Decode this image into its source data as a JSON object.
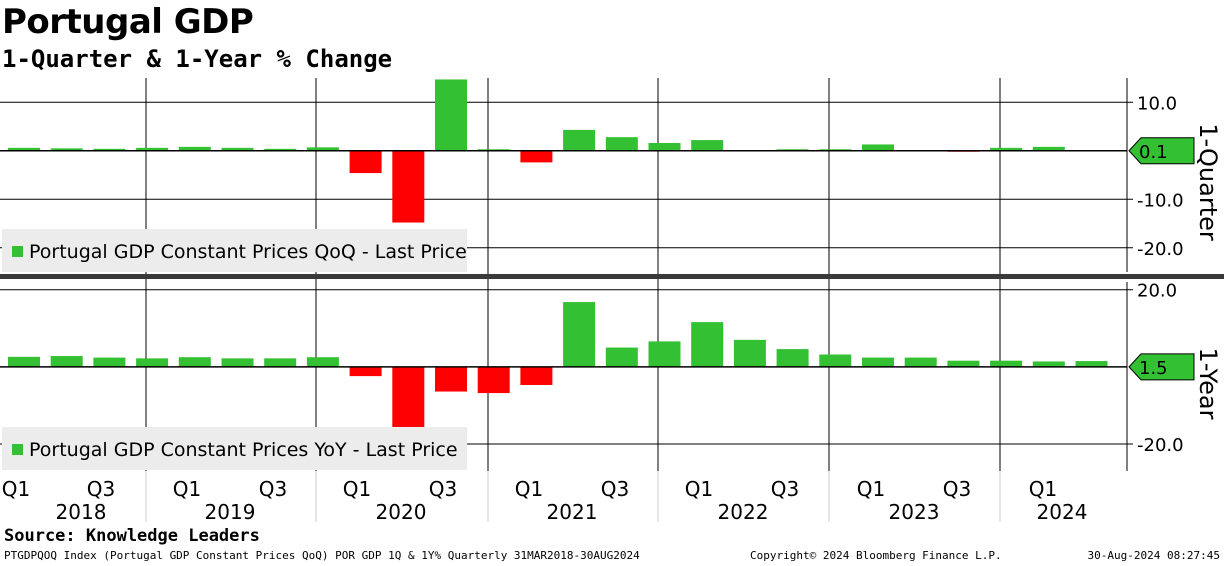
{
  "header": {
    "title": "Portugal GDP",
    "subtitle": "1-Quarter & 1-Year % Change"
  },
  "footer": {
    "source": "Source: Knowledge Leaders",
    "ticker_info": "PTGDPQOQ Index (Portugal GDP Constant  Prices QoQ) POR GDP 1Q & 1Y%  Quarterly 31MAR2018-30AUG2024",
    "copyright": "Copyright© 2024 Bloomberg Finance L.P.",
    "timestamp": "30-Aug-2024 08:27:45"
  },
  "colors": {
    "positive": "#33c033",
    "negative": "#ff0000",
    "grid": "#000000",
    "legend_bg": "#ececec"
  },
  "chart_data": [
    {
      "type": "bar",
      "panel": "top",
      "axis_title": "1-Quarter",
      "legend": "Portugal GDP Constant Prices QoQ - Last Price",
      "last_value_label": "0.1",
      "ylim": [
        -25,
        15
      ],
      "yticks": [
        10,
        -10,
        -20
      ],
      "ytick_labels": [
        "10.0",
        "-10.0",
        "-20.0"
      ],
      "categories": [
        "2018Q1",
        "2018Q2",
        "2018Q3",
        "2018Q4",
        "2019Q1",
        "2019Q2",
        "2019Q3",
        "2019Q4",
        "2020Q1",
        "2020Q2",
        "2020Q3",
        "2020Q4",
        "2021Q1",
        "2021Q2",
        "2021Q3",
        "2021Q4",
        "2022Q1",
        "2022Q2",
        "2022Q3",
        "2022Q4",
        "2023Q1",
        "2023Q2",
        "2023Q3",
        "2023Q4",
        "2024Q1",
        "2024Q2"
      ],
      "values": [
        0.6,
        0.5,
        0.4,
        0.6,
        0.8,
        0.6,
        0.4,
        0.7,
        -4.6,
        -14.8,
        14.7,
        0.3,
        -2.4,
        4.3,
        2.8,
        1.6,
        2.2,
        0.1,
        0.3,
        0.3,
        1.3,
        0.1,
        -0.1,
        0.6,
        0.8,
        0.1
      ]
    },
    {
      "type": "bar",
      "panel": "bottom",
      "axis_title": "1-Year",
      "legend": "Portugal GDP Constant Prices YoY - Last Price",
      "last_value_label": "1.5",
      "ylim": [
        -27,
        22
      ],
      "yticks": [
        20,
        -20
      ],
      "ytick_labels": [
        "20.0",
        "-20.0"
      ],
      "categories": [
        "2018Q1",
        "2018Q2",
        "2018Q3",
        "2018Q4",
        "2019Q1",
        "2019Q2",
        "2019Q3",
        "2019Q4",
        "2020Q1",
        "2020Q2",
        "2020Q3",
        "2020Q4",
        "2021Q1",
        "2021Q2",
        "2021Q3",
        "2021Q4",
        "2022Q1",
        "2022Q2",
        "2022Q3",
        "2022Q4",
        "2023Q1",
        "2023Q2",
        "2023Q3",
        "2023Q4",
        "2024Q1",
        "2024Q2"
      ],
      "values": [
        2.6,
        2.8,
        2.4,
        2.2,
        2.5,
        2.2,
        2.2,
        2.5,
        -2.4,
        -17.9,
        -6.4,
        -6.8,
        -4.7,
        16.8,
        5.0,
        6.6,
        11.6,
        7.0,
        4.6,
        3.2,
        2.4,
        2.4,
        1.6,
        1.6,
        1.4,
        1.5
      ]
    }
  ],
  "x_axis": {
    "quarter_labels": [
      "Q1",
      "Q3",
      "Q1",
      "Q3",
      "Q1",
      "Q3",
      "Q1",
      "Q3",
      "Q1",
      "Q3",
      "Q1",
      "Q3",
      "Q1"
    ],
    "year_labels": [
      "2018",
      "2019",
      "2020",
      "2021",
      "2022",
      "2023",
      "2024"
    ]
  }
}
